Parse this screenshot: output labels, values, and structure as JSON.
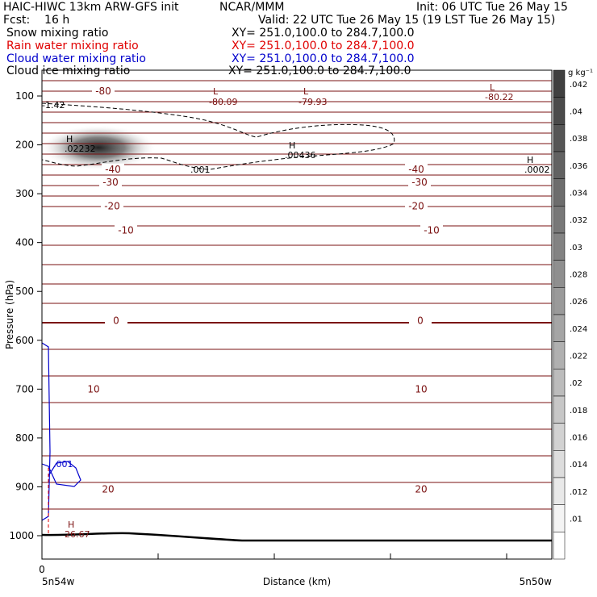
{
  "header": {
    "title_left": "HAIC-HIWC 13km ARW-GFS init",
    "title_center": "NCAR/MMM",
    "init": "Init: 06 UTC Tue 26 May 15",
    "fcst": "Fcst:    16 h",
    "valid": "Valid: 22 UTC Tue 26 May 15 (19 LST Tue 26 May 15)",
    "fields": [
      {
        "name": "Snow mixing ratio",
        "xy": "XY= 251.0,100.0 to 284.7,100.0",
        "color": "#000000"
      },
      {
        "name": "Rain water mixing ratio",
        "xy": "XY= 251.0,100.0 to 284.7,100.0",
        "color": "#e00000"
      },
      {
        "name": "Cloud water mixing ratio",
        "xy": "XY= 251.0,100.0 to 284.7,100.0",
        "color": "#0000cc"
      },
      {
        "name": "Cloud ice mixing ratio",
        "xy": "XY= 251.0,100.0 to 284.7,100.0",
        "color": "#000000"
      }
    ]
  },
  "chart_data": {
    "type": "line",
    "xlabel": "Distance (km)",
    "ylabel": "Pressure (hPa)",
    "x_ticks": [
      "0"
    ],
    "x_left_label": "5n54w",
    "x_right_label": "5n50w",
    "y_ticks": [
      100,
      200,
      300,
      400,
      500,
      600,
      700,
      800,
      900,
      1000
    ],
    "ylim": [
      50,
      1040
    ],
    "temperature_contours": [
      {
        "label": "-80",
        "p": 90
      },
      {
        "label": "-40",
        "p": 250
      },
      {
        "label": "-30",
        "p": 277
      },
      {
        "label": "-20",
        "p": 325
      },
      {
        "label": "-10",
        "p": 375
      },
      {
        "label": "0",
        "p": 560
      },
      {
        "label": "10",
        "p": 700
      },
      {
        "label": "20",
        "p": 905
      }
    ],
    "extrema": [
      {
        "kind": "L",
        "value": "-80.09"
      },
      {
        "kind": "L",
        "value": "-79.93"
      },
      {
        "kind": "L",
        "value": "-80.22"
      },
      {
        "kind": "H",
        "value": ".02232"
      },
      {
        "kind": "H",
        "value": ".00436"
      },
      {
        "kind": "H",
        "value": ".0002"
      },
      {
        "kind": "H",
        "value": "26.67"
      }
    ],
    "contour_annotations": [
      ".001",
      ".001",
      "-1.42"
    ],
    "colorbar": {
      "units": "g kg⁻¹",
      "ticks": [
        ".042",
        ".04",
        ".038",
        ".036",
        ".034",
        ".032",
        ".03",
        ".028",
        ".026",
        ".024",
        ".022",
        ".02",
        ".018",
        ".016",
        ".014",
        ".012",
        ".01"
      ]
    }
  }
}
